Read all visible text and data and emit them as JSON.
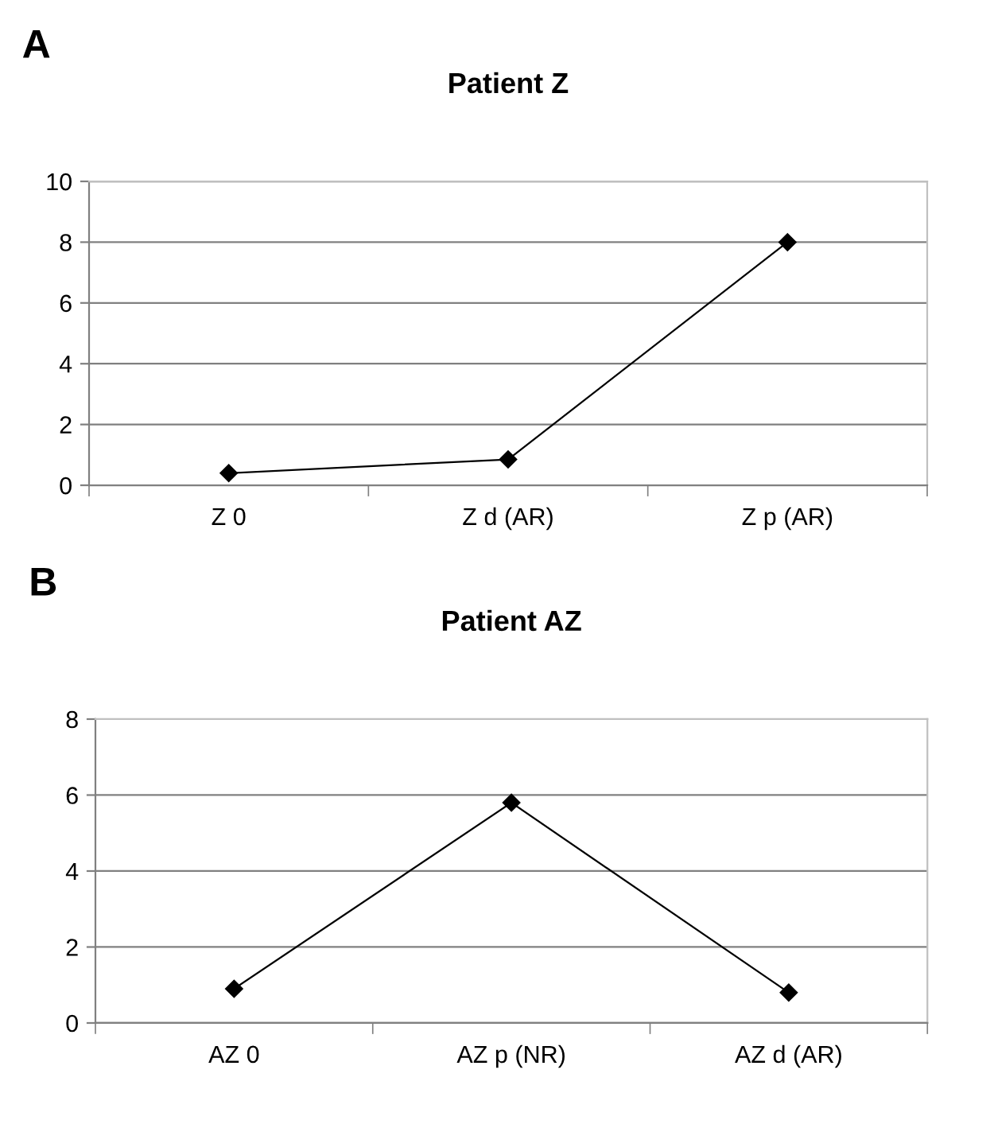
{
  "chart_data": [
    {
      "type": "line",
      "title": "Patient Z",
      "annotations": [
        "A"
      ],
      "categories": [
        "Z 0",
        "Z d (AR)",
        "Z p (AR)"
      ],
      "series": [
        {
          "color": "#000000",
          "values": [
            0.4,
            0.85,
            8
          ]
        }
      ],
      "ylim": [
        0,
        10
      ],
      "yticks": [
        0,
        2,
        4,
        6,
        8,
        10
      ],
      "grid": "y",
      "marker": "diamond",
      "line_style": "solid"
    },
    {
      "type": "line",
      "title": "Patient AZ",
      "annotations": [
        "B"
      ],
      "categories": [
        "AZ 0",
        "AZ p (NR)",
        "AZ d (AR)"
      ],
      "series": [
        {
          "color": "#000000",
          "values": [
            0.9,
            5.8,
            0.8
          ]
        }
      ],
      "ylim": [
        0,
        8
      ],
      "yticks": [
        0,
        2,
        4,
        6,
        8
      ],
      "grid": "y",
      "marker": "diamond",
      "line_style": "solid"
    }
  ]
}
